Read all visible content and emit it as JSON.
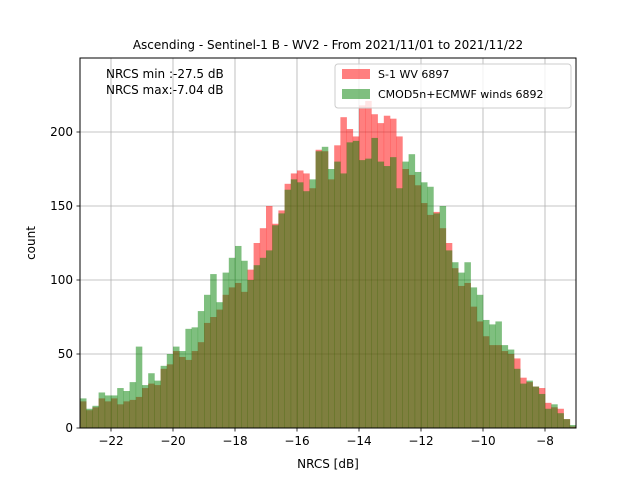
{
  "chart_data": {
    "type": "bar",
    "title": "Ascending - Sentinel-1 B - WV2 - From 2021/11/01 to 2021/11/22",
    "xlabel": "NRCS [dB]",
    "ylabel": "count",
    "xlim": [
      -23.0,
      -7.0
    ],
    "ylim": [
      0,
      250
    ],
    "xticks": [
      -22,
      -20,
      -18,
      -16,
      -14,
      -12,
      -10,
      -8
    ],
    "yticks": [
      0,
      50,
      100,
      150,
      200
    ],
    "grid": true,
    "annotations": [
      "NRCS min :-27.5 dB",
      "NRCS max:-7.04 dB"
    ],
    "legend_position": "upper right",
    "bins": {
      "start": -23.0,
      "width": 0.2,
      "count": 80
    },
    "series": [
      {
        "name": "S-1 WV 6897",
        "color": "#ff0000",
        "alpha": 0.5,
        "values": [
          18,
          12,
          14,
          20,
          18,
          20,
          16,
          18,
          19,
          21,
          27,
          30,
          29,
          40,
          43,
          52,
          48,
          46,
          52,
          58,
          71,
          75,
          80,
          90,
          95,
          98,
          92,
          107,
          125,
          135,
          150,
          138,
          147,
          165,
          172,
          174,
          172,
          162,
          188,
          187,
          168,
          191,
          210,
          202,
          197,
          218,
          221,
          212,
          206,
          211,
          209,
          197,
          175,
          171,
          164,
          152,
          144,
          146,
          135,
          125,
          108,
          96,
          98,
          82,
          72,
          62,
          56,
          56,
          52,
          50,
          47,
          34,
          31,
          28,
          27,
          17,
          14,
          13,
          6,
          1
        ]
      },
      {
        "name": "CMOD5n+ECMWF winds 6892",
        "color": "#008000",
        "alpha": 0.5,
        "values": [
          20,
          13,
          15,
          24,
          22,
          22,
          27,
          25,
          31,
          55,
          29,
          37,
          32,
          42,
          50,
          55,
          52,
          67,
          68,
          79,
          90,
          104,
          85,
          105,
          115,
          123,
          113,
          100,
          110,
          115,
          120,
          137,
          145,
          161,
          168,
          166,
          160,
          168,
          187,
          190,
          175,
          180,
          172,
          193,
          194,
          181,
          182,
          196,
          180,
          177,
          183,
          162,
          180,
          185,
          173,
          166,
          163,
          145,
          150,
          120,
          112,
          105,
          112,
          95,
          90,
          73,
          70,
          72,
          56,
          53,
          40,
          30,
          32,
          28,
          23,
          13,
          16,
          10,
          6,
          2
        ]
      }
    ]
  }
}
